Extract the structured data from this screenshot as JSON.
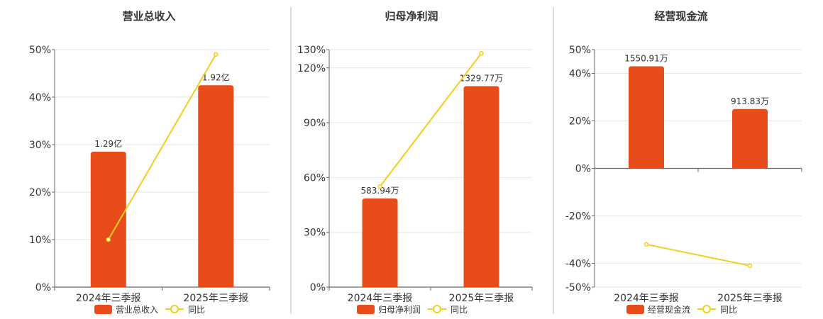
{
  "colors": {
    "bar": "#E84C1A",
    "line": "#F2CE1E",
    "axis": "#666666",
    "grid": "#e6e6e6",
    "divider": "#bbbbbb"
  },
  "chart_data": [
    {
      "type": "bar",
      "title": "营业总收入",
      "categories": [
        "2024年三季报",
        "2025年三季报"
      ],
      "series": [
        {
          "name": "营业总收入",
          "type": "bar",
          "values": [
            28.5,
            42.5
          ],
          "labels": [
            "1.29亿",
            "1.92亿"
          ]
        },
        {
          "name": "同比",
          "type": "line",
          "values": [
            10,
            49
          ]
        }
      ],
      "yticks": [
        0,
        10,
        20,
        30,
        40,
        50
      ],
      "ytick_labels": [
        "0%",
        "10%",
        "20%",
        "30%",
        "40%",
        "50%"
      ],
      "ylim": [
        0,
        50
      ],
      "legend": "bottom"
    },
    {
      "type": "bar",
      "title": "归母净利润",
      "categories": [
        "2024年三季报",
        "2025年三季报"
      ],
      "series": [
        {
          "name": "归母净利润",
          "type": "bar",
          "values": [
            48.5,
            110
          ],
          "labels": [
            "583.94万",
            "1329.77万"
          ]
        },
        {
          "name": "同比",
          "type": "line",
          "values": [
            55,
            128
          ]
        }
      ],
      "yticks": [
        0,
        30,
        60,
        90,
        120,
        130
      ],
      "ytick_labels": [
        "0%",
        "30%",
        "60%",
        "90%",
        "120%",
        "130%"
      ],
      "ylim": [
        0,
        130
      ],
      "legend": "bottom"
    },
    {
      "type": "bar",
      "title": "经营现金流",
      "categories": [
        "2024年三季报",
        "2025年三季报"
      ],
      "series": [
        {
          "name": "经营现金流",
          "type": "bar",
          "values": [
            43,
            25
          ],
          "labels": [
            "1550.91万",
            "913.83万"
          ]
        },
        {
          "name": "同比",
          "type": "line",
          "values": [
            -32,
            -41
          ]
        }
      ],
      "yticks": [
        -50,
        -40,
        -20,
        0,
        20,
        40,
        50
      ],
      "ytick_labels": [
        "-50%",
        "-40%",
        "-20%",
        "0%",
        "20%",
        "40%",
        "50%"
      ],
      "ylim": [
        -50,
        50
      ],
      "legend": "bottom"
    }
  ]
}
